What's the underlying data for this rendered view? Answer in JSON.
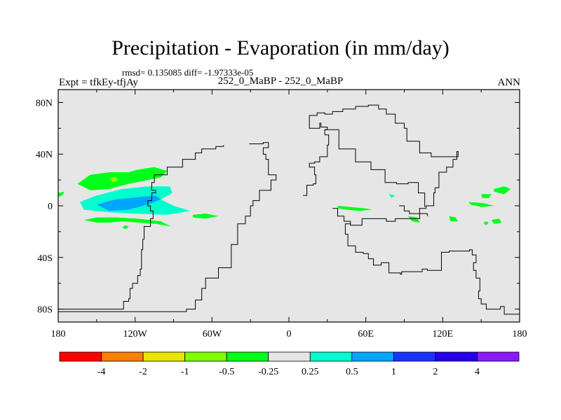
{
  "header": {
    "title": "Precipitation - Evaporation (in mm/day)",
    "stats": "rmsd= 0.135085 diff= -1.97333e-05",
    "left_label": "Expt = tfkEy-tfjAy",
    "center_label": "252_0_MaBP - 252_0_MaBP",
    "right_label": "ANN"
  },
  "chart_data": {
    "type": "heatmap",
    "title": "Precipitation - Evaporation (in mm/day)",
    "xlabel": "",
    "ylabel": "",
    "xlim": [
      -180,
      180
    ],
    "ylim": [
      -90,
      90
    ],
    "x_ticks": [
      {
        "value": -180,
        "label": "180"
      },
      {
        "value": -120,
        "label": "120W"
      },
      {
        "value": -60,
        "label": "60W"
      },
      {
        "value": 0,
        "label": "0"
      },
      {
        "value": 60,
        "label": "60E"
      },
      {
        "value": 120,
        "label": "120E"
      },
      {
        "value": 180,
        "label": "180"
      }
    ],
    "y_ticks": [
      {
        "value": 80,
        "label": "80N"
      },
      {
        "value": 40,
        "label": "40N"
      },
      {
        "value": 0,
        "label": "0"
      },
      {
        "value": -40,
        "label": "40S"
      },
      {
        "value": -80,
        "label": "80S"
      }
    ],
    "background_color": "#e6e6e6",
    "contour_levels": [
      -4,
      -2,
      -1,
      -0.5,
      -0.25,
      0.25,
      0.5,
      1,
      2,
      4
    ],
    "level_labels": [
      "-4",
      "-2",
      "-1",
      "-0.5",
      "-0.25",
      "0.25",
      "0.5",
      "1",
      "2",
      "4"
    ],
    "colors": [
      "#ff0000",
      "#ff7f00",
      "#e6e600",
      "#80ff00",
      "#00ff1a",
      "#e6e6e6",
      "#00ffcc",
      "#00a6ff",
      "#1a33ff",
      "#2600e6",
      "#8c1aff"
    ],
    "filled_regions": [
      {
        "color": "#00ff1a",
        "points": [
          [
            -165,
            17
          ],
          [
            -155,
            24
          ],
          [
            -140,
            26
          ],
          [
            -125,
            26
          ],
          [
            -118,
            28
          ],
          [
            -105,
            30
          ],
          [
            -95,
            27
          ],
          [
            -100,
            22
          ],
          [
            -110,
            20
          ],
          [
            -125,
            17
          ],
          [
            -140,
            13
          ],
          [
            -155,
            12
          ]
        ]
      },
      {
        "color": "#80ff00",
        "points": [
          [
            -140,
            21
          ],
          [
            -136,
            23
          ],
          [
            -133,
            20
          ],
          [
            -137,
            18
          ]
        ]
      },
      {
        "color": "#00ffcc",
        "points": [
          [
            -163,
            3
          ],
          [
            -150,
            8
          ],
          [
            -130,
            13
          ],
          [
            -110,
            15
          ],
          [
            -93,
            15
          ],
          [
            -91,
            10
          ],
          [
            -100,
            5
          ],
          [
            -90,
            0
          ],
          [
            -77,
            -4
          ],
          [
            -95,
            -7
          ],
          [
            -120,
            -6
          ],
          [
            -140,
            -5
          ],
          [
            -160,
            -3
          ]
        ]
      },
      {
        "color": "#00a6ff",
        "points": [
          [
            -150,
            1
          ],
          [
            -135,
            5
          ],
          [
            -115,
            7
          ],
          [
            -104,
            8
          ],
          [
            -100,
            5
          ],
          [
            -110,
            1
          ],
          [
            -125,
            -3
          ],
          [
            -140,
            -4
          ]
        ]
      },
      {
        "color": "#00ff1a",
        "points": [
          [
            -160,
            -11
          ],
          [
            -150,
            -13
          ],
          [
            -140,
            -13
          ],
          [
            -130,
            -12
          ],
          [
            -118,
            -13
          ],
          [
            -104,
            -14
          ],
          [
            -92,
            -16
          ],
          [
            -100,
            -12
          ],
          [
            -118,
            -10
          ],
          [
            -135,
            -9
          ],
          [
            -150,
            -9
          ]
        ]
      },
      {
        "color": "#00ff1a",
        "points": [
          [
            -130,
            -17
          ],
          [
            -127,
            -18
          ],
          [
            -125,
            -16
          ],
          [
            -128,
            -15
          ]
        ]
      },
      {
        "color": "#00ff1a",
        "points": [
          [
            -75,
            -7
          ],
          [
            -65,
            -6
          ],
          [
            -55,
            -8
          ],
          [
            -65,
            -10
          ],
          [
            -75,
            -9
          ]
        ]
      },
      {
        "color": "#00ff1a",
        "points": [
          [
            -180,
            10
          ],
          [
            -175,
            11
          ],
          [
            -177,
            8
          ],
          [
            -180,
            7
          ]
        ]
      },
      {
        "color": "#00ff1a",
        "points": [
          [
            38,
            0
          ],
          [
            48,
            -1
          ],
          [
            60,
            -2
          ],
          [
            65,
            -3
          ],
          [
            55,
            -4
          ],
          [
            45,
            -3
          ],
          [
            38,
            -2
          ]
        ]
      },
      {
        "color": "#00ffcc",
        "points": [
          [
            78,
            9
          ],
          [
            83,
            8
          ],
          [
            80,
            6
          ]
        ]
      },
      {
        "color": "#00ff1a",
        "points": [
          [
            93,
            -8
          ],
          [
            100,
            -9
          ],
          [
            102,
            -13
          ],
          [
            96,
            -12
          ]
        ]
      },
      {
        "color": "#00ff1a",
        "points": [
          [
            125,
            -8
          ],
          [
            130,
            -9
          ],
          [
            132,
            -12
          ],
          [
            126,
            -12
          ]
        ]
      },
      {
        "color": "#00ff1a",
        "points": [
          [
            140,
            3
          ],
          [
            152,
            2
          ],
          [
            160,
            0
          ],
          [
            150,
            -1
          ],
          [
            142,
            1
          ]
        ]
      },
      {
        "color": "#00ff1a",
        "points": [
          [
            160,
            13
          ],
          [
            168,
            15
          ],
          [
            173,
            13
          ],
          [
            168,
            9
          ],
          [
            160,
            11
          ]
        ]
      },
      {
        "color": "#00ff1a",
        "points": [
          [
            150,
            9
          ],
          [
            158,
            9
          ],
          [
            156,
            6
          ],
          [
            151,
            6
          ]
        ]
      },
      {
        "color": "#00ff1a",
        "points": [
          [
            158,
            -11
          ],
          [
            164,
            -10
          ],
          [
            166,
            -13
          ],
          [
            160,
            -14
          ]
        ]
      },
      {
        "color": "#00ff1a",
        "points": [
          [
            153,
            -12
          ],
          [
            156,
            -13
          ],
          [
            154,
            -15
          ],
          [
            152,
            -14
          ]
        ]
      }
    ],
    "coastlines": [
      [
        [
          -180,
          -80
        ],
        [
          -136,
          -80
        ],
        [
          -129,
          -74
        ],
        [
          -125,
          -72
        ],
        [
          -124,
          -64
        ],
        [
          -122,
          -60
        ],
        [
          -118,
          -54
        ],
        [
          -116,
          -49
        ],
        [
          -115,
          -34
        ],
        [
          -114,
          -26
        ],
        [
          -113,
          -16
        ],
        [
          -108,
          -10
        ],
        [
          -106,
          -4
        ],
        [
          -108,
          0
        ],
        [
          -110,
          4
        ],
        [
          -107,
          10
        ],
        [
          -104,
          12
        ],
        [
          -107,
          18
        ],
        [
          -105,
          24
        ],
        [
          -95,
          30
        ],
        [
          -83,
          36
        ],
        [
          -73,
          41
        ],
        [
          -68,
          44
        ],
        [
          -57,
          46
        ],
        [
          -51,
          47
        ]
      ],
      [
        [
          11,
          8
        ],
        [
          14,
          16
        ],
        [
          19,
          17
        ],
        [
          21,
          24
        ],
        [
          20,
          30
        ],
        [
          16,
          33
        ],
        [
          20,
          34
        ],
        [
          24,
          38
        ],
        [
          30,
          47
        ],
        [
          31,
          55
        ],
        [
          28,
          59
        ],
        [
          30,
          61
        ],
        [
          25,
          64
        ],
        [
          24,
          60
        ],
        [
          20,
          60
        ],
        [
          16,
          64
        ],
        [
          16,
          70
        ],
        [
          22,
          72
        ],
        [
          28,
          71
        ],
        [
          34,
          73
        ],
        [
          42,
          75
        ],
        [
          52,
          77
        ],
        [
          62,
          78
        ],
        [
          70,
          75
        ],
        [
          76,
          71
        ],
        [
          83,
          64
        ],
        [
          90,
          60
        ],
        [
          92,
          50
        ],
        [
          102,
          41
        ],
        [
          111,
          38
        ],
        [
          126,
          38
        ],
        [
          132,
          42
        ],
        [
          131,
          36
        ],
        [
          128,
          30
        ],
        [
          123,
          26
        ],
        [
          117,
          14
        ],
        [
          114,
          10
        ],
        [
          113,
          0
        ],
        [
          107,
          -2
        ],
        [
          102,
          -10
        ],
        [
          90,
          -10
        ],
        [
          83,
          -12
        ],
        [
          76,
          -10
        ],
        [
          64,
          -10
        ],
        [
          57,
          -15
        ],
        [
          48,
          -14
        ],
        [
          44,
          -22
        ],
        [
          46,
          -31
        ],
        [
          52,
          -36
        ],
        [
          58,
          -37
        ],
        [
          62,
          -41
        ],
        [
          66,
          -46
        ],
        [
          72,
          -44
        ],
        [
          78,
          -52
        ],
        [
          87,
          -53
        ],
        [
          88,
          -51
        ],
        [
          94,
          -51
        ],
        [
          104,
          -49
        ],
        [
          108,
          -50
        ],
        [
          119,
          -36
        ],
        [
          125,
          -35
        ],
        [
          141,
          -34
        ],
        [
          143,
          -38
        ],
        [
          146,
          -44
        ],
        [
          144,
          -50
        ],
        [
          146,
          -56
        ],
        [
          149,
          -66
        ],
        [
          148,
          -72
        ],
        [
          150,
          -76
        ],
        [
          154,
          -80
        ],
        [
          160,
          -80
        ],
        [
          165,
          -78
        ],
        [
          168,
          -84
        ],
        [
          180,
          -84
        ]
      ],
      [
        [
          -31,
          48
        ],
        [
          -20,
          49
        ],
        [
          -16,
          45
        ],
        [
          -20,
          40
        ],
        [
          -18,
          36
        ],
        [
          -16,
          24
        ],
        [
          -10,
          20
        ],
        [
          -14,
          12
        ],
        [
          -23,
          4
        ],
        [
          -28,
          0
        ],
        [
          -30,
          -8
        ],
        [
          -34,
          -14
        ],
        [
          -40,
          -30
        ],
        [
          -45,
          -48
        ],
        [
          -55,
          -56
        ],
        [
          -65,
          -64
        ],
        [
          -68,
          -73
        ],
        [
          -73,
          -80
        ],
        [
          -80,
          -82
        ],
        [
          -104,
          -82
        ],
        [
          -180,
          -82
        ]
      ],
      [
        [
          28,
          59
        ],
        [
          39,
          44
        ],
        [
          52,
          34
        ],
        [
          64,
          28
        ],
        [
          75,
          18
        ],
        [
          84,
          17
        ],
        [
          93,
          18
        ],
        [
          101,
          10
        ],
        [
          106,
          -1
        ]
      ],
      [
        [
          34,
          -2
        ],
        [
          38,
          -8
        ],
        [
          43,
          -12
        ],
        [
          48,
          -14
        ]
      ],
      [
        [
          86,
          0
        ],
        [
          90,
          -4
        ],
        [
          94,
          -6
        ],
        [
          102,
          -6
        ],
        [
          108,
          -8
        ]
      ]
    ]
  },
  "colorbar": {
    "labels": [
      "-4",
      "-2",
      "-1",
      "-0.5",
      "-0.25",
      "0.25",
      "0.5",
      "1",
      "2",
      "4"
    ]
  }
}
